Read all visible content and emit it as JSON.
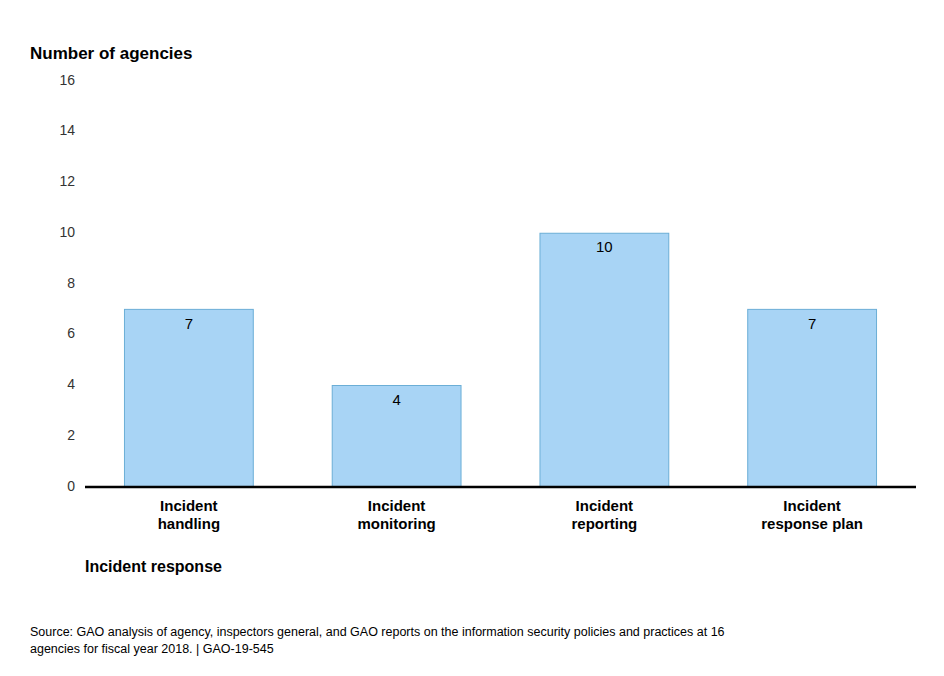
{
  "chart_data": {
    "type": "bar",
    "categories": [
      "Incident\nhandling",
      "Incident\nmonitoring",
      "Incident\nreporting",
      "Incident\nresponse plan"
    ],
    "values": [
      7,
      4,
      10,
      7
    ],
    "color": "#a8d4f5",
    "ylabel": "Number of agencies",
    "xlabel": "Incident response",
    "source": "Source: GAO analysis of agency, inspectors general, and GAO reports on the information security policies and practices at 16\nagencies for fiscal year 2018.  |  GAO-19-545",
    "ylim": [
      0,
      16
    ],
    "yticks": [
      0,
      2,
      4,
      6,
      8,
      10,
      12,
      14,
      16
    ],
    "grid": false,
    "data_labels": true
  }
}
